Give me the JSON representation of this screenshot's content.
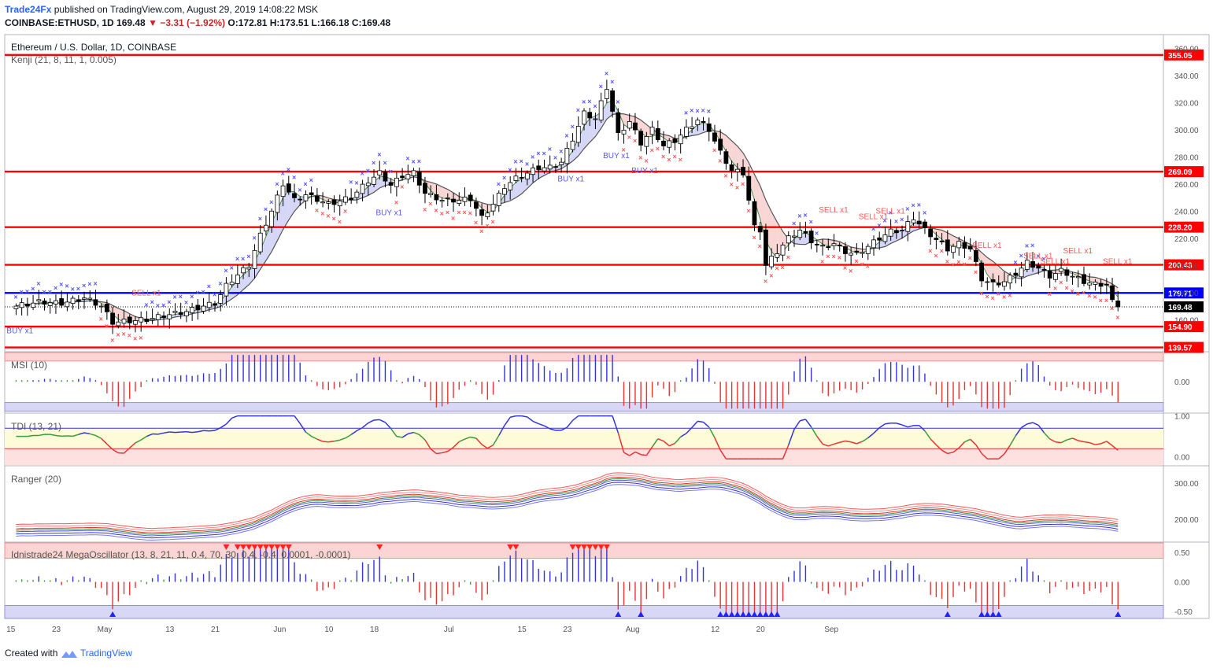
{
  "header": {
    "author": "Trade24Fx",
    "published_text": "published on TradingView.com, August 29, 2019 14:08:22 MSK",
    "symbol": "COINBASE:ETHUSD, 1D",
    "last": "169.48",
    "change": "−3.31 (−1.92%)",
    "ohlc": "O:172.81 H:173.51 L:166.18 C:169.48"
  },
  "footer": {
    "created_with": "Created with",
    "brand": "TradingView"
  },
  "colors": {
    "up_candle": "#ffffff",
    "down_candle": "#000000",
    "level_line": "#ff0000",
    "blue_line": "#0000ff",
    "buy_marker": "#5555ff",
    "sell_marker": "#ff5555"
  },
  "chart_data": [
    {
      "type": "candlestick",
      "title": "Ethereum / U.S. Dollar, 1D, COINBASE",
      "indicator": "Kenji (21, 8, 11, 1, 0.005)",
      "ylim": [
        137,
        370
      ],
      "yticks": [
        "160.00",
        "180.00",
        "200.00",
        "220.00",
        "240.00",
        "260.00",
        "280.00",
        "300.00",
        "320.00",
        "340.00",
        "360.00"
      ],
      "horizontal_levels": [
        "355.05",
        "269.09",
        "228.20",
        "200.43",
        "179.71",
        "154.90",
        "139.57"
      ],
      "last_price_label": "169.48",
      "xticks": [
        "15",
        "23",
        "May",
        "13",
        "21",
        "Jun",
        "10",
        "18",
        "Jul",
        "15",
        "23",
        "Aug",
        "12",
        "20",
        "Sep"
      ],
      "signals": [
        {
          "text": "BUY x1",
          "day": 0,
          "price": 150
        },
        {
          "text": "SELL x1",
          "day": 22,
          "price": 178
        },
        {
          "text": "BUY x1",
          "day": 65,
          "price": 237
        },
        {
          "text": "BUY x1",
          "day": 97,
          "price": 262
        },
        {
          "text": "BUY x1",
          "day": 105,
          "price": 279
        },
        {
          "text": "BUY x1",
          "day": 110,
          "price": 268
        },
        {
          "text": "SELL x1",
          "day": 143,
          "price": 239
        },
        {
          "text": "SELL x1",
          "day": 150,
          "price": 234
        },
        {
          "text": "SELL x1",
          "day": 153,
          "price": 238
        },
        {
          "text": "SELL x1",
          "day": 170,
          "price": 213
        },
        {
          "text": "SELL x1",
          "day": 179,
          "price": 205
        },
        {
          "text": "SELL x1",
          "day": 182,
          "price": 201
        },
        {
          "text": "SELL x1",
          "day": 186,
          "price": 209
        },
        {
          "text": "SELL x1",
          "day": 193,
          "price": 201
        }
      ],
      "close_anchors": [
        [
          0,
          170
        ],
        [
          4,
          173
        ],
        [
          8,
          172
        ],
        [
          12,
          176
        ],
        [
          15,
          170
        ],
        [
          17,
          158
        ],
        [
          20,
          159
        ],
        [
          23,
          160
        ],
        [
          26,
          163
        ],
        [
          30,
          166
        ],
        [
          33,
          170
        ],
        [
          35,
          172
        ],
        [
          37,
          185
        ],
        [
          39,
          193
        ],
        [
          41,
          200
        ],
        [
          43,
          222
        ],
        [
          45,
          240
        ],
        [
          47,
          260
        ],
        [
          49,
          248
        ],
        [
          51,
          252
        ],
        [
          55,
          245
        ],
        [
          59,
          250
        ],
        [
          62,
          262
        ],
        [
          64,
          268
        ],
        [
          66,
          259
        ],
        [
          68,
          266
        ],
        [
          70,
          268
        ],
        [
          72,
          253
        ],
        [
          75,
          248
        ],
        [
          78,
          248
        ],
        [
          80,
          249
        ],
        [
          82,
          235
        ],
        [
          84,
          245
        ],
        [
          86,
          258
        ],
        [
          88,
          264
        ],
        [
          90,
          268
        ],
        [
          92,
          272
        ],
        [
          94,
          272
        ],
        [
          96,
          276
        ],
        [
          98,
          293
        ],
        [
          100,
          312
        ],
        [
          102,
          308
        ],
        [
          104,
          331
        ],
        [
          106,
          296
        ],
        [
          108,
          306
        ],
        [
          110,
          290
        ],
        [
          112,
          300
        ],
        [
          114,
          288
        ],
        [
          116,
          292
        ],
        [
          118,
          300
        ],
        [
          120,
          307
        ],
        [
          122,
          300
        ],
        [
          124,
          283
        ],
        [
          126,
          270
        ],
        [
          128,
          268
        ],
        [
          130,
          228
        ],
        [
          131,
          226
        ],
        [
          132,
          200
        ],
        [
          134,
          210
        ],
        [
          136,
          220
        ],
        [
          138,
          226
        ],
        [
          140,
          218
        ],
        [
          142,
          213
        ],
        [
          144,
          216
        ],
        [
          146,
          210
        ],
        [
          148,
          208
        ],
        [
          150,
          214
        ],
        [
          152,
          220
        ],
        [
          154,
          225
        ],
        [
          156,
          226
        ],
        [
          158,
          235
        ],
        [
          160,
          226
        ],
        [
          162,
          219
        ],
        [
          164,
          212
        ],
        [
          166,
          216
        ],
        [
          168,
          212
        ],
        [
          170,
          190
        ],
        [
          172,
          186
        ],
        [
          174,
          188
        ],
        [
          176,
          194
        ],
        [
          178,
          202
        ],
        [
          180,
          198
        ],
        [
          182,
          192
        ],
        [
          184,
          196
        ],
        [
          186,
          192
        ],
        [
          188,
          188
        ],
        [
          190,
          186
        ],
        [
          192,
          186
        ],
        [
          193,
          173
        ],
        [
          194,
          169.48
        ]
      ],
      "x_axis_day_range": [
        -2,
        202
      ]
    },
    {
      "type": "bar",
      "title": "MSI (10)",
      "yticks": [
        "0.00"
      ],
      "ylim": [
        -1.25,
        1.2
      ],
      "note": "histogram derived from price momentum"
    },
    {
      "type": "line",
      "title": "TDI (13, 21)",
      "yticks": [
        "1.00",
        "0.00"
      ],
      "ylim": [
        -0.2,
        1.05
      ]
    },
    {
      "type": "line",
      "title": "Ranger (20)",
      "yticks": [
        "300.00",
        "200.00"
      ],
      "ylim": [
        140,
        345
      ]
    },
    {
      "type": "bar",
      "title": "Idnistrade24 MegaOscillator (13, 8, 21, 11, 0.4, 70, 30, 0.4, -0.4, 0.0001, -0.0001)",
      "yticks": [
        "0.50",
        "0.00",
        "-0.50"
      ],
      "ylim": [
        -0.62,
        0.66
      ]
    }
  ]
}
